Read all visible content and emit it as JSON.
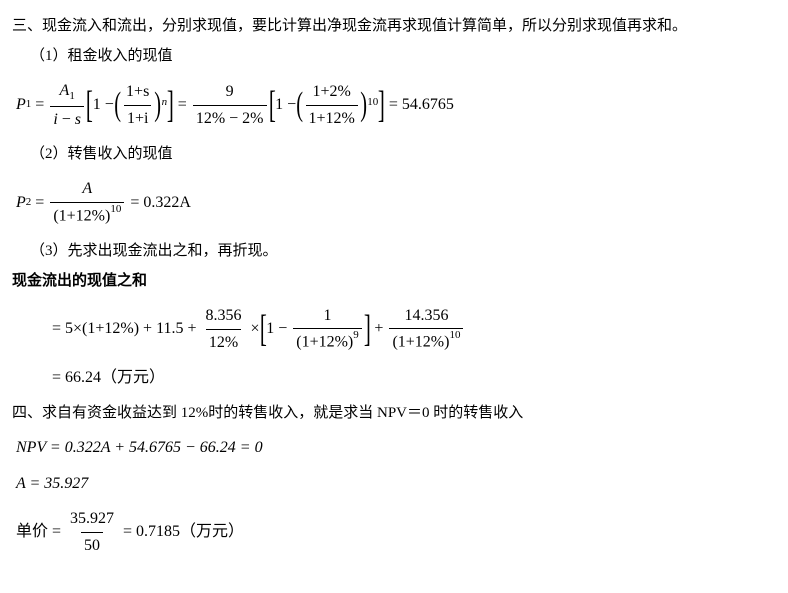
{
  "section3": {
    "title": "三、现金流入和流出，分别求现值，要比计算出净现金流再求现值计算简单，所以分别求现值再求和。",
    "part1": {
      "label": "（1）租金收入的现值",
      "formula": {
        "lhs": "P",
        "lhs_sub": "1",
        "frac1_num_A": "A",
        "frac1_num_sub": "1",
        "frac1_den_i": "i",
        "frac1_den_minus": " − ",
        "frac1_den_s": "s",
        "inner_frac_num": "1+s",
        "inner_frac_den": "1+i",
        "inner_exp": "n",
        "mid_frac_num": "9",
        "mid_frac_den": "12% − 2%",
        "inner2_frac_num": "1+2%",
        "inner2_frac_den": "1+12%",
        "inner2_exp": "10",
        "result": "= 54.6765"
      }
    },
    "part2": {
      "label": "（2）转售收入的现值",
      "formula": {
        "lhs": "P",
        "lhs_sub": "2",
        "frac_num": "A",
        "frac_den_base": "(1+12%)",
        "frac_den_exp": "10",
        "result": "= 0.322A"
      }
    },
    "part3": {
      "label": "（3）先求出现金流出之和，再折现。",
      "heading": "现金流出的现值之和",
      "line1": {
        "t1": "= 5×(1+12%) + 11.5 +",
        "frac1_num": "8.356",
        "frac1_den": "12%",
        "t2": "×",
        "one": "1 −",
        "frac2_num": "1",
        "frac2_den_base": "(1+12%)",
        "frac2_den_exp": "9",
        "t3": "+",
        "frac3_num": "14.356",
        "frac3_den_base": "(1+12%)",
        "frac3_den_exp": "10"
      },
      "line2": "= 66.24（万元）"
    }
  },
  "section4": {
    "title": "四、求自有资金收益达到 12%时的转售收入，就是求当 NPV＝0 时的转售收入",
    "eq1": "NPV = 0.322A + 54.6765 − 66.24 = 0",
    "eq2": "A = 35.927",
    "price": {
      "label": "单价 =",
      "frac_num": "35.927",
      "frac_den": "50",
      "result": "= 0.7185（万元）"
    }
  }
}
